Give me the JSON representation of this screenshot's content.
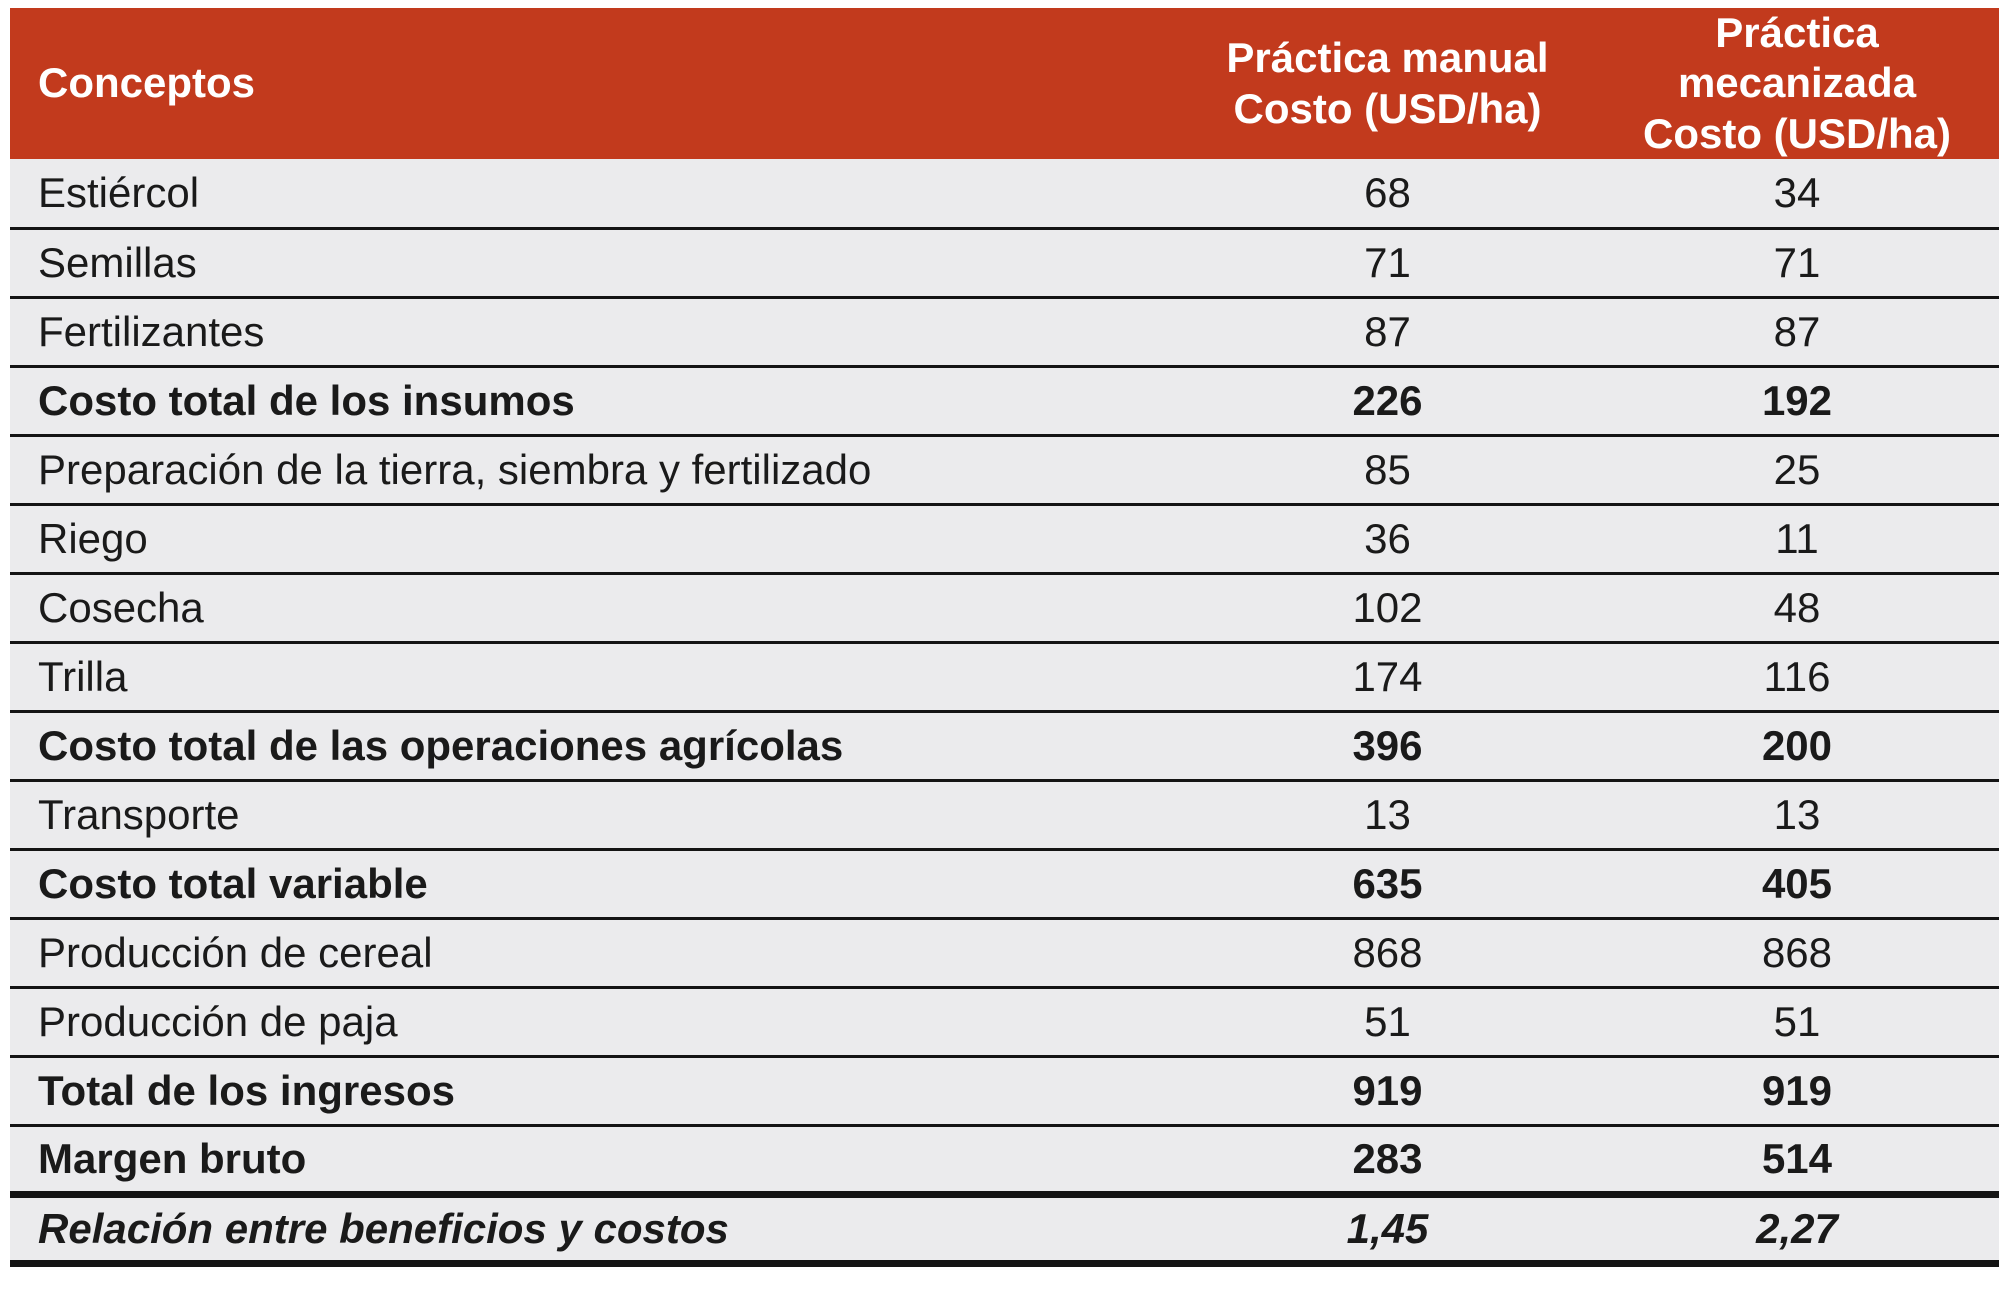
{
  "colors": {
    "page_bg": "#FFFFFF",
    "header_bg": "#C23A1D",
    "header_text": "#FFFFFF",
    "row_bg": "#EBEBED",
    "border": "#141414",
    "text": "#1A1A1A"
  },
  "chart_data": {
    "type": "table",
    "title": "",
    "columns": [
      {
        "id": "concepto",
        "header_lines": [
          "Conceptos",
          ""
        ]
      },
      {
        "id": "manual",
        "header_lines": [
          "Práctica manual",
          "Costo (USD/ha)"
        ]
      },
      {
        "id": "mecanizada",
        "header_lines": [
          "Práctica mecanizada",
          "Costo (USD/ha)"
        ]
      }
    ],
    "rows": [
      {
        "concepto": "Estiércol",
        "manual": "68",
        "mecanizada": "34",
        "emphasis": "normal"
      },
      {
        "concepto": "Semillas",
        "manual": "71",
        "mecanizada": "71",
        "emphasis": "normal"
      },
      {
        "concepto": "Fertilizantes",
        "manual": "87",
        "mecanizada": "87",
        "emphasis": "normal"
      },
      {
        "concepto": "Costo total de los insumos",
        "manual": "226",
        "mecanizada": "192",
        "emphasis": "bold"
      },
      {
        "concepto": "Preparación de la tierra, siembra y fertilizado",
        "manual": "85",
        "mecanizada": "25",
        "emphasis": "normal"
      },
      {
        "concepto": "Riego",
        "manual": "36",
        "mecanizada": "11",
        "emphasis": "normal"
      },
      {
        "concepto": "Cosecha",
        "manual": "102",
        "mecanizada": "48",
        "emphasis": "normal"
      },
      {
        "concepto": "Trilla",
        "manual": "174",
        "mecanizada": "116",
        "emphasis": "normal"
      },
      {
        "concepto": "Costo total de las operaciones agrícolas",
        "manual": "396",
        "mecanizada": "200",
        "emphasis": "bold"
      },
      {
        "concepto": "Transporte",
        "manual": "13",
        "mecanizada": "13",
        "emphasis": "normal"
      },
      {
        "concepto": "Costo total variable",
        "manual": "635",
        "mecanizada": "405",
        "emphasis": "bold"
      },
      {
        "concepto": "Producción de cereal",
        "manual": "868",
        "mecanizada": "868",
        "emphasis": "normal"
      },
      {
        "concepto": "Producción de paja",
        "manual": "51",
        "mecanizada": "51",
        "emphasis": "normal"
      },
      {
        "concepto": "Total de los ingresos",
        "manual": "919",
        "mecanizada": "919",
        "emphasis": "bold"
      },
      {
        "concepto": "Margen bruto",
        "manual": "283",
        "mecanizada": "514",
        "emphasis": "bold"
      },
      {
        "concepto": "Relación entre beneficios y costos",
        "manual": "1,45",
        "mecanizada": "2,27",
        "emphasis": "bold-italic"
      }
    ]
  }
}
